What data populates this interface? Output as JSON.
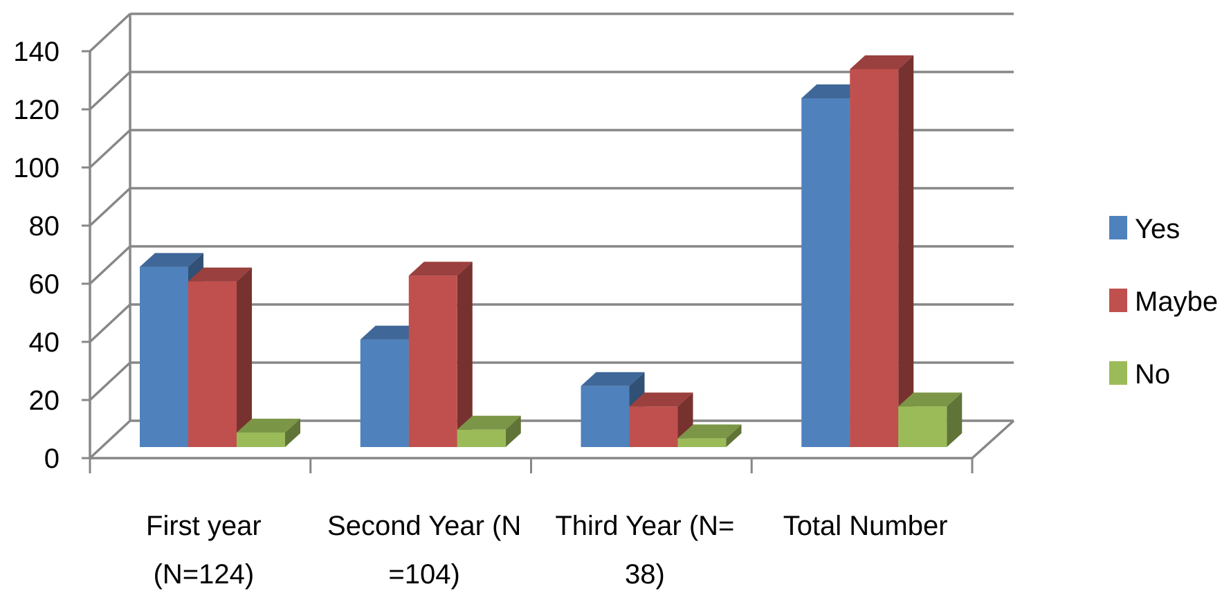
{
  "chart_data": {
    "type": "bar",
    "title": "",
    "xlabel": "",
    "ylabel": "",
    "ylim": [
      0,
      140
    ],
    "yticks": [
      0,
      20,
      40,
      60,
      80,
      100,
      120,
      140
    ],
    "grid": true,
    "legend_position": "right",
    "categories": [
      [
        "First year",
        "(N=124)"
      ],
      [
        "Second Year (N",
        "=104)"
      ],
      [
        "Third Year (N=",
        "38)"
      ],
      [
        "Total Number"
      ]
    ],
    "series": [
      {
        "name": "Yes",
        "color": "#4F81BD",
        "values": [
          62,
          37,
          21,
          120
        ]
      },
      {
        "name": "Maybe",
        "color": "#C0504D",
        "values": [
          57,
          59,
          14,
          130
        ]
      },
      {
        "name": "No",
        "color": "#9BBB59",
        "values": [
          5,
          6,
          3,
          14
        ]
      }
    ]
  }
}
